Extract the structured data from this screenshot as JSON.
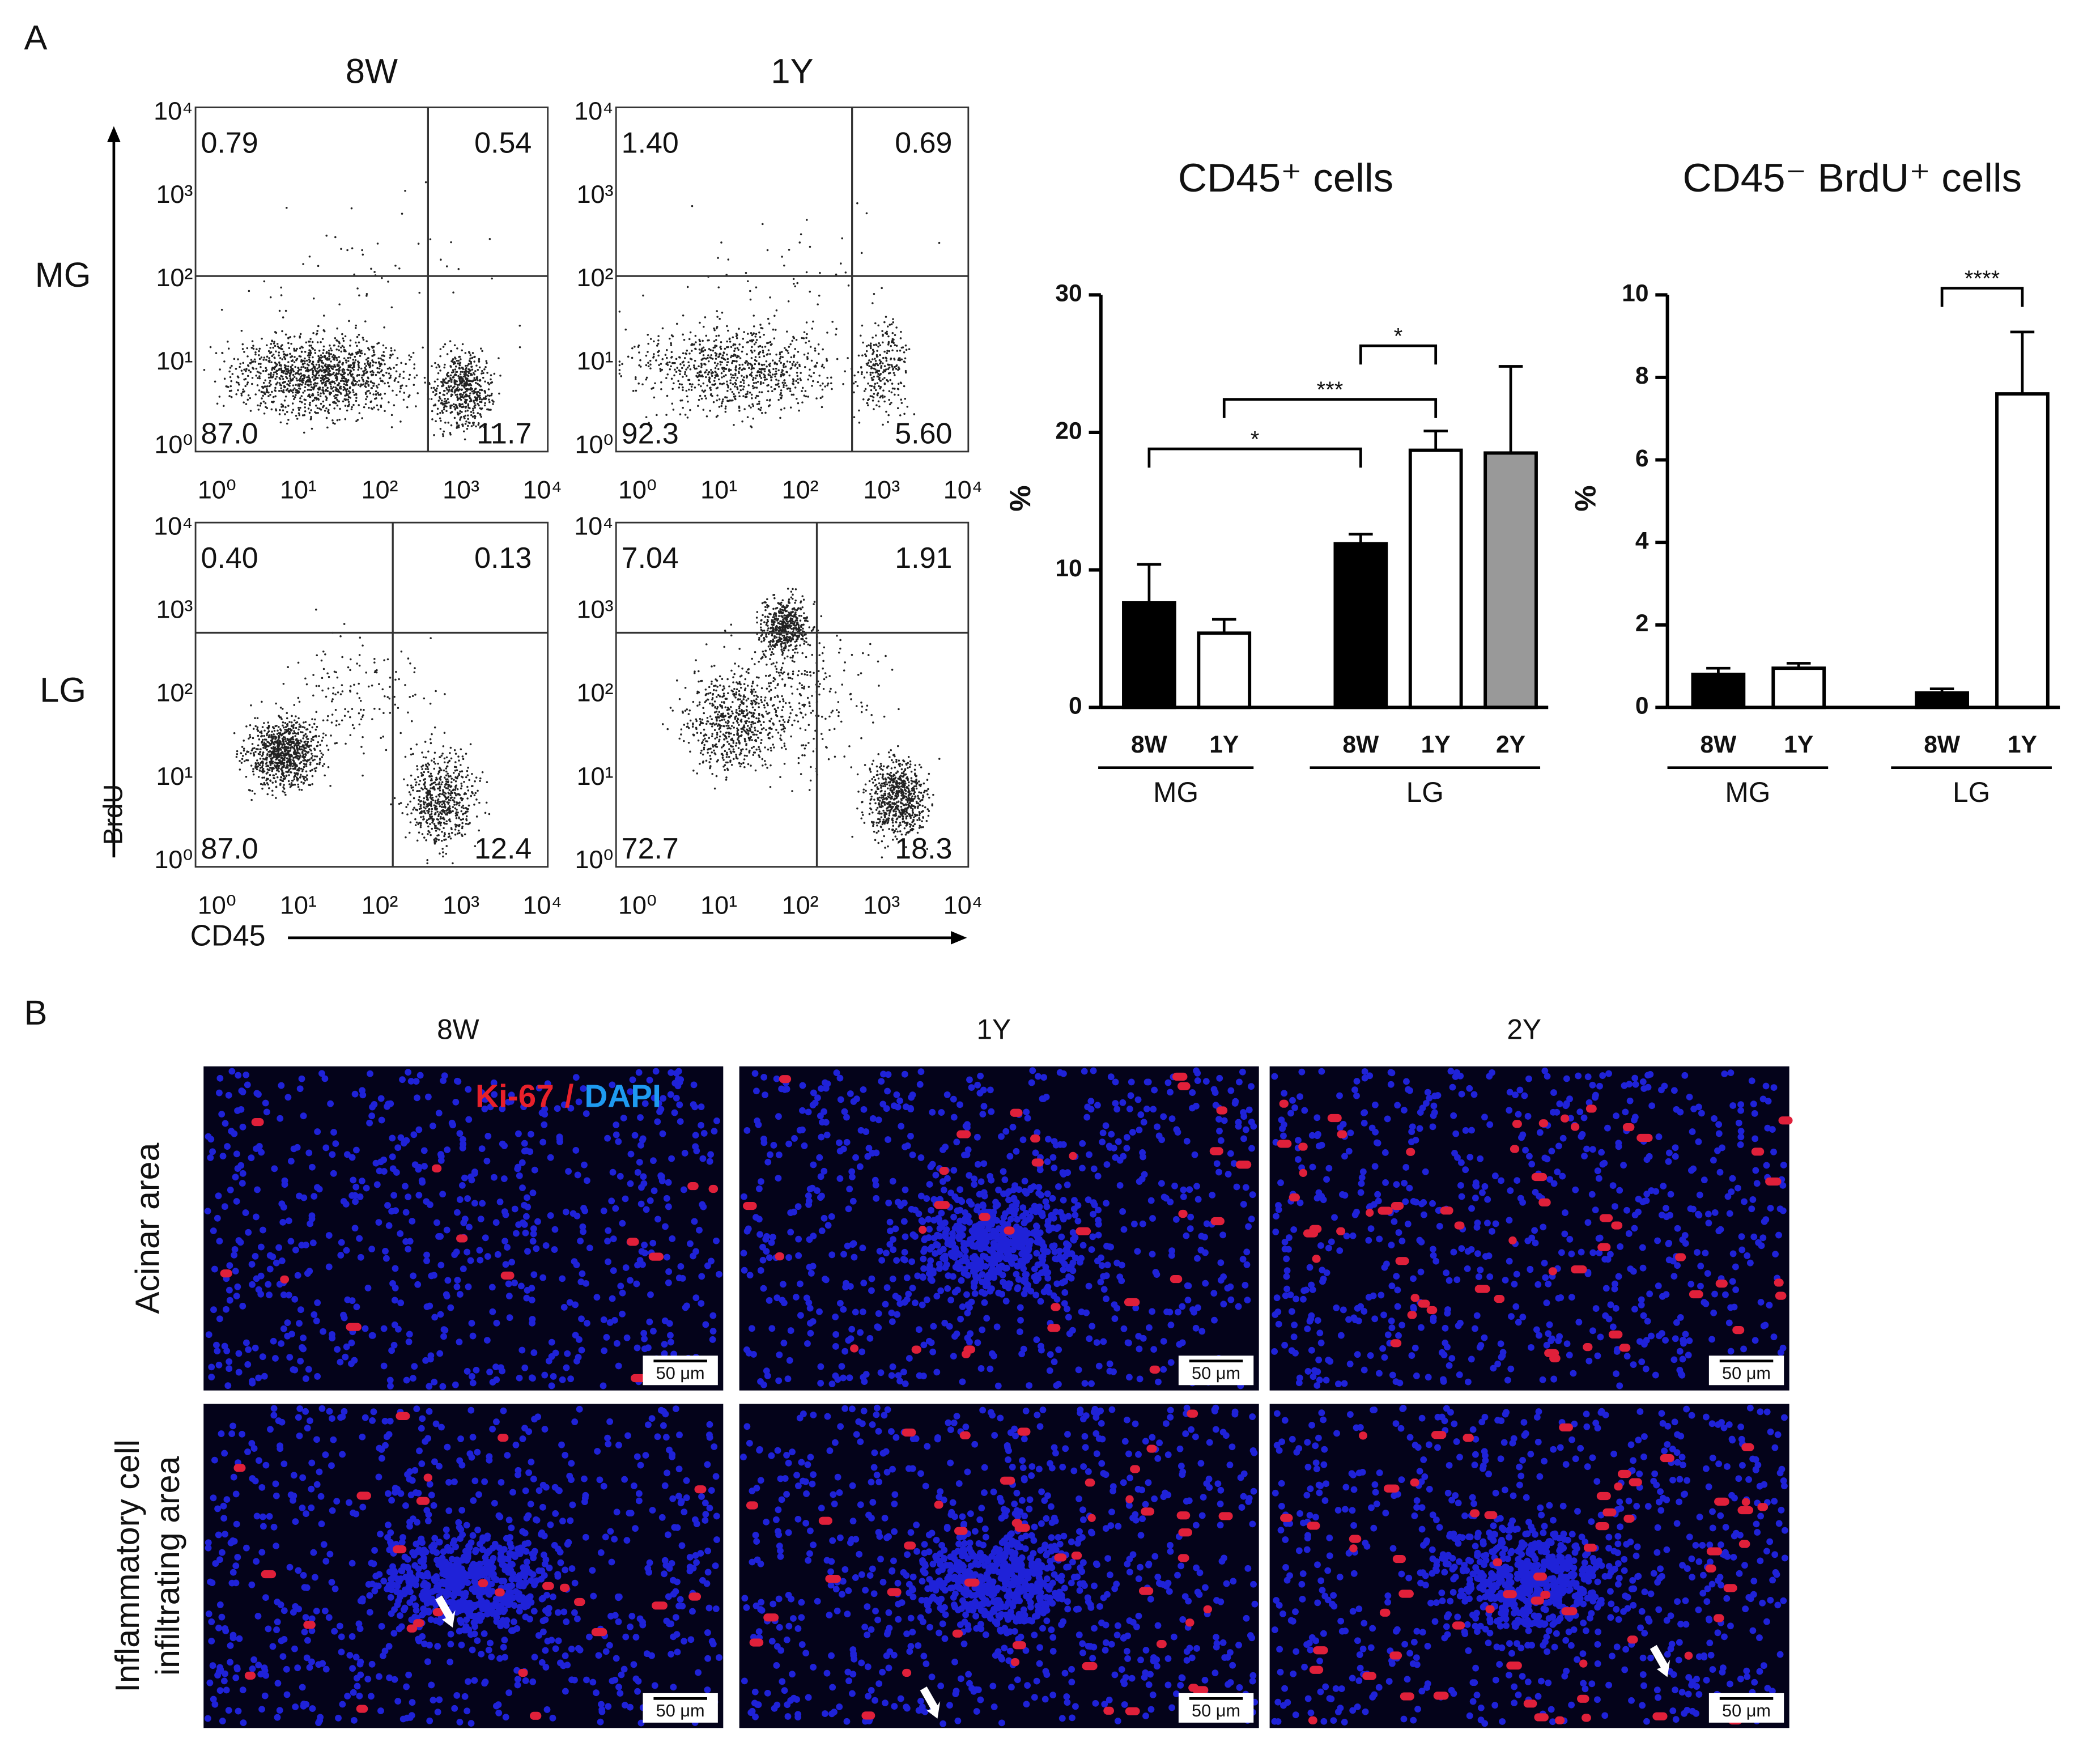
{
  "panel_labels": [
    "A",
    "B"
  ],
  "flow": {
    "columns": [
      "8W",
      "1Y"
    ],
    "rows": [
      "MG",
      "LG"
    ],
    "x_label": "CD45",
    "y_label": "BrdU",
    "ticks": [
      "10⁰",
      "10¹",
      "10²",
      "10³",
      "10⁴"
    ],
    "quadrants": [
      [
        [
          "0.79",
          "0.54",
          "87.0",
          "11.7"
        ],
        [
          "1.40",
          "0.69",
          "92.3",
          "5.60"
        ]
      ],
      [
        [
          "0.40",
          "0.13",
          "87.0",
          "12.4"
        ],
        [
          "7.04",
          "1.91",
          "72.7",
          "18.3"
        ]
      ]
    ]
  },
  "chart_data": [
    {
      "type": "bar",
      "title": "CD45⁺ cells",
      "y_label": "%",
      "categories": [
        "8W",
        "1Y",
        "8W",
        "1Y",
        "2Y"
      ],
      "groups": [
        {
          "name": "MG",
          "size": 2
        },
        {
          "name": "LG",
          "size": 3
        }
      ],
      "values": [
        7.6,
        5.4,
        11.9,
        18.7,
        18.5
      ],
      "errors": [
        2.8,
        1.0,
        0.7,
        1.4,
        6.3
      ],
      "colors": [
        "#000000",
        "#ffffff",
        "#000000",
        "#ffffff",
        "#999999"
      ],
      "ylim": [
        0,
        30
      ],
      "yticks": [
        0,
        10,
        20,
        30
      ],
      "significance": [
        {
          "label": "*",
          "between": [
            0,
            2
          ]
        },
        {
          "label": "***",
          "between": [
            1,
            3
          ]
        },
        {
          "label": "*",
          "between": [
            2,
            3
          ]
        }
      ]
    },
    {
      "type": "bar",
      "title": "CD45⁻ BrdU⁺ cells",
      "y_label": "%",
      "categories": [
        "8W",
        "1Y",
        "8W",
        "1Y"
      ],
      "groups": [
        {
          "name": "MG",
          "size": 2
        },
        {
          "name": "LG",
          "size": 2
        }
      ],
      "values": [
        0.8,
        0.95,
        0.35,
        7.6
      ],
      "errors": [
        0.15,
        0.12,
        0.1,
        1.5
      ],
      "colors": [
        "#000000",
        "#ffffff",
        "#000000",
        "#ffffff"
      ],
      "ylim": [
        0,
        10
      ],
      "yticks": [
        0,
        2,
        4,
        6,
        8,
        10
      ],
      "significance": [
        {
          "label": "****",
          "between": [
            2,
            3
          ]
        }
      ]
    }
  ],
  "micrographs": {
    "columns": [
      "8W",
      "1Y",
      "2Y"
    ],
    "rows": [
      [
        "Acinar area"
      ],
      [
        "Inflammatory cell",
        "infiltrating area"
      ]
    ],
    "legend": {
      "marker": "Ki-67",
      "separator": "/",
      "counterstain": "DAPI"
    },
    "scale_bar": "50 μm"
  }
}
